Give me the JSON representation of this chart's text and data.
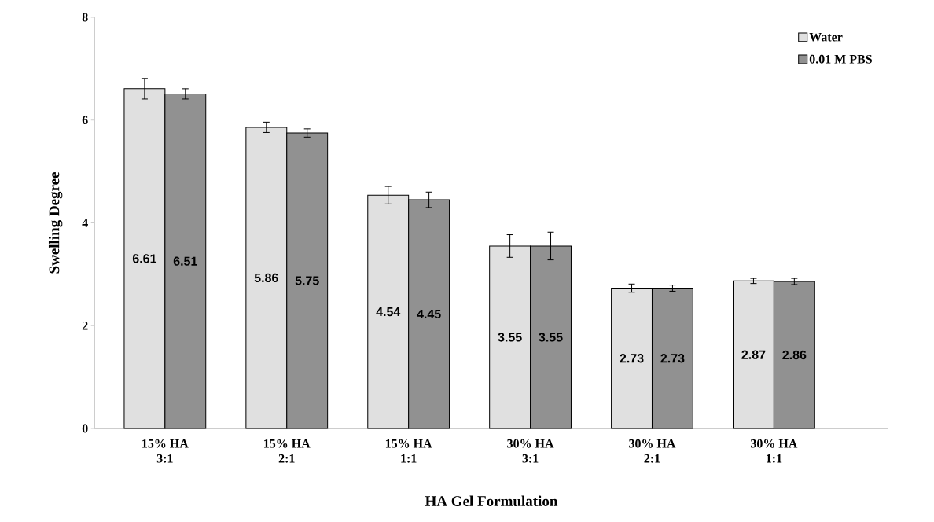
{
  "chart_data": {
    "type": "bar",
    "xlabel": "HA Gel Formulation",
    "ylabel": "Swelling Degree",
    "categories": [
      "15% HA 3:1",
      "15% HA 2:1",
      "15% HA 1:1",
      "30% HA 3:1",
      "30% HA 2:1",
      "30% HA 1:1"
    ],
    "series": [
      {
        "name": "Water",
        "color": "#e0e0e0",
        "values": [
          6.61,
          5.86,
          4.54,
          3.55,
          2.73,
          2.87
        ],
        "errors": [
          0.2,
          0.1,
          0.17,
          0.22,
          0.08,
          0.05
        ]
      },
      {
        "name": "0.01 M PBS",
        "color": "#919191",
        "values": [
          6.51,
          5.75,
          4.45,
          3.55,
          2.73,
          2.86
        ],
        "errors": [
          0.1,
          0.08,
          0.15,
          0.27,
          0.06,
          0.06
        ]
      }
    ],
    "ylim": [
      0,
      8
    ],
    "yticks": [
      0,
      2,
      4,
      6,
      8
    ],
    "data_labels": true,
    "legend": "top right",
    "grid": false
  }
}
